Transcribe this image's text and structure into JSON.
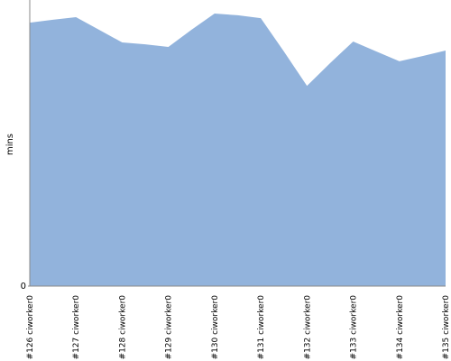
{
  "chart_data": {
    "type": "area",
    "y_label": "mins",
    "color": "#92b3dc",
    "categories": [
      "#126 ciworker0",
      null,
      "#127 ciworker0",
      null,
      "#128 ciworker0",
      null,
      "#129 ciworker0",
      null,
      "#130 ciworker0",
      null,
      "#131 ciworker0",
      null,
      "#132 ciworker0",
      null,
      "#133 ciworker0",
      null,
      "#134 ciworker0",
      null,
      "#135 ciworker0"
    ],
    "values": [
      11.05,
      11.17,
      11.28,
      10.75,
      10.22,
      10.14,
      10.03,
      10.75,
      11.43,
      11.36,
      11.24,
      9.84,
      8.4,
      9.35,
      10.26,
      9.84,
      9.43,
      9.65,
      9.88
    ],
    "ylim": [
      0,
      12
    ],
    "yticks": [
      0
    ]
  }
}
